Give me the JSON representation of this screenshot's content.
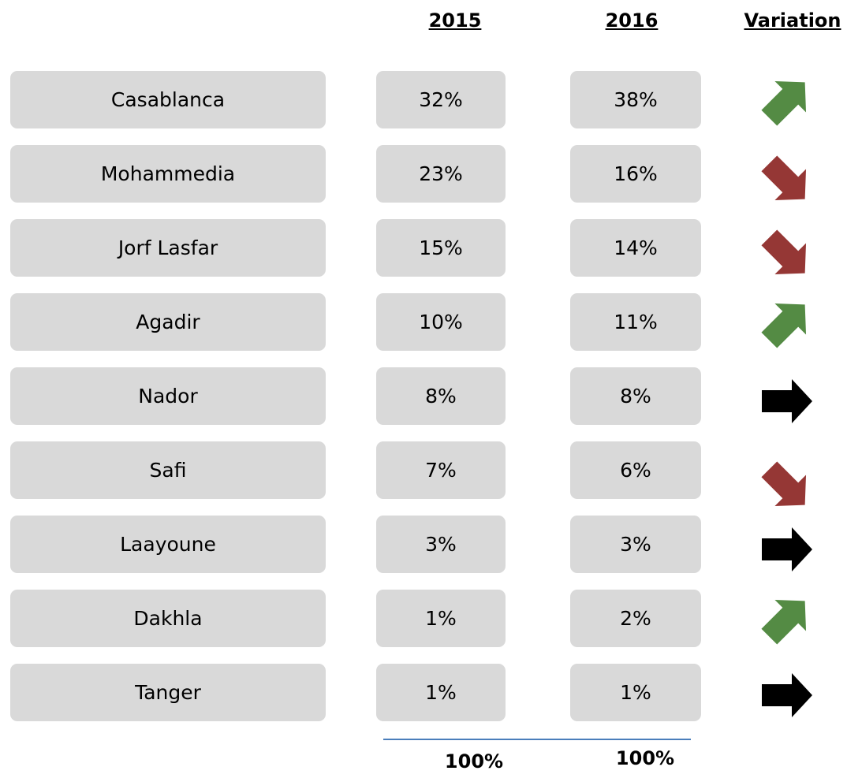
{
  "header": [
    "2015",
    "2016",
    "Variation"
  ],
  "rows": [
    [
      "Casablanca",
      "32%",
      "38%"
    ],
    [
      "Mohammedia",
      "23%",
      "16%"
    ],
    [
      "Jorf Lasfar",
      "15%",
      "14%"
    ],
    [
      "Agadir",
      "10%",
      "11%"
    ],
    [
      "Nador",
      "8%",
      "8%"
    ],
    [
      "Safi",
      "7%",
      "6%"
    ],
    [
      "Laayoune",
      "3%",
      "3%"
    ],
    [
      "Dakhla",
      "1%",
      "2%"
    ],
    [
      "Tanger",
      "1%",
      "1%"
    ]
  ],
  "totals": [
    "100%",
    "100%"
  ]
}
